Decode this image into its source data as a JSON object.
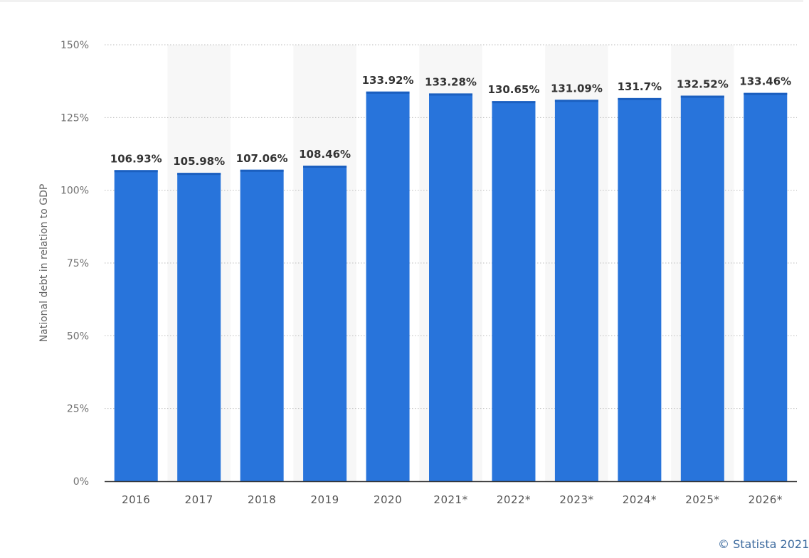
{
  "chart_data": {
    "type": "bar",
    "categories": [
      "2016",
      "2017",
      "2018",
      "2019",
      "2020",
      "2021*",
      "2022*",
      "2023*",
      "2024*",
      "2025*",
      "2026*"
    ],
    "values": [
      106.93,
      105.98,
      107.06,
      108.46,
      133.92,
      133.28,
      130.65,
      131.09,
      131.7,
      132.52,
      133.46
    ],
    "value_labels": [
      "106.93%",
      "105.98%",
      "107.06%",
      "108.46%",
      "133.92%",
      "133.28%",
      "130.65%",
      "131.09%",
      "131.7%",
      "132.52%",
      "133.46%"
    ],
    "ylabel": "National debt in relation to GDP",
    "xlabel": "",
    "ylim": [
      0,
      150
    ],
    "y_ticks": [
      0,
      25,
      50,
      75,
      100,
      125,
      150
    ],
    "y_tick_labels": [
      "0%",
      "25%",
      "50%",
      "75%",
      "100%",
      "125%",
      "150%"
    ],
    "grid": true,
    "bar_color": "#2874db",
    "bar_cap_color": "#1b5fbf",
    "stripe_color": "#f7f7f7"
  },
  "credit": "© Statista 2021"
}
